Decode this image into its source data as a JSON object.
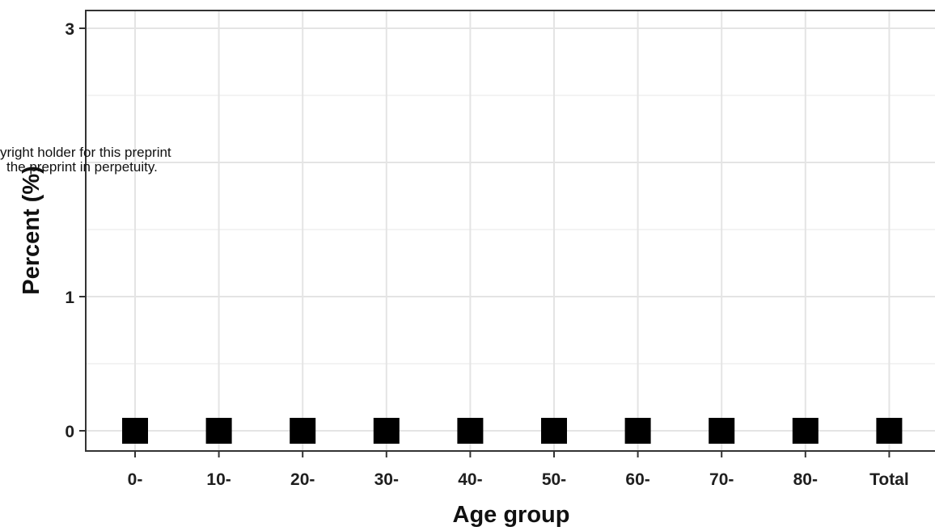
{
  "chart_data": {
    "type": "scatter",
    "marker": "square",
    "categories": [
      "0-",
      "10-",
      "20-",
      "30-",
      "40-",
      "50-",
      "60-",
      "70-",
      "80-",
      "Total"
    ],
    "values": [
      0,
      0,
      0,
      0,
      0,
      0,
      0,
      0,
      0,
      0
    ],
    "xlabel": "Age group",
    "ylabel": "Percent (%)",
    "ylim": [
      0,
      3
    ],
    "yticks": [
      "0",
      "1",
      "3"
    ],
    "ytick_values": [
      0,
      1,
      3
    ],
    "grid": true,
    "colors": {
      "marker": "#000000",
      "grid": "#e4e4e4",
      "panel_border": "#333333"
    }
  },
  "overlay_text": {
    "line1": "yright holder for this preprint",
    "line2": "the preprint in perpetuity."
  }
}
